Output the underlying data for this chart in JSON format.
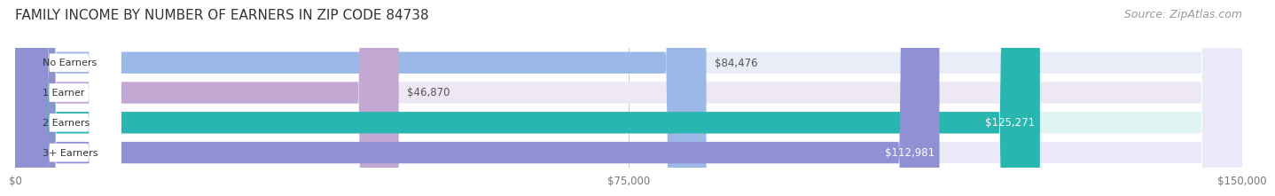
{
  "title": "FAMILY INCOME BY NUMBER OF EARNERS IN ZIP CODE 84738",
  "source": "Source: ZipAtlas.com",
  "categories": [
    "No Earners",
    "1 Earner",
    "2 Earners",
    "3+ Earners"
  ],
  "values": [
    84476,
    46870,
    125271,
    112981
  ],
  "bar_colors": [
    "#9bb8e8",
    "#c4a8d4",
    "#29b5b0",
    "#9090d4"
  ],
  "bar_bg_colors": [
    "#e8edf8",
    "#ede8f4",
    "#dff4f3",
    "#eceaf8"
  ],
  "value_labels": [
    "$84,476",
    "$46,870",
    "$125,271",
    "$112,981"
  ],
  "value_label_inside": [
    false,
    false,
    true,
    true
  ],
  "xlim": [
    0,
    150000
  ],
  "xticks": [
    0,
    75000,
    150000
  ],
  "xticklabels": [
    "$0",
    "$75,000",
    "$150,000"
  ],
  "background_color": "#ffffff",
  "plot_bg_color": "#f7f7fa",
  "title_fontsize": 11,
  "source_fontsize": 9,
  "bar_height": 0.72,
  "bar_gap": 0.08
}
